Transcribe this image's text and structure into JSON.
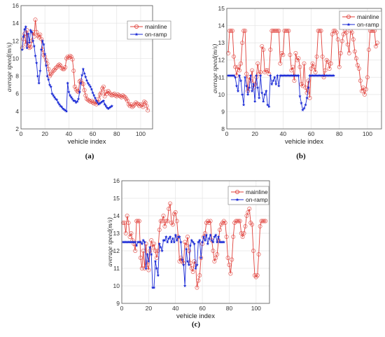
{
  "colors": {
    "mainline": "#e0403a",
    "onramp": "#1b2bd6",
    "mainline_fill": "#f6c0c0",
    "onramp_fill": "#c8ccf4"
  },
  "xlabel": "vehicle index",
  "ylabel": "average speed(m/s)",
  "legend": {
    "mainline": "mainline",
    "onramp": "on-ramp"
  },
  "chart_data": [
    {
      "type": "line",
      "caption": "(a)",
      "xlabel": "vehicle index",
      "ylabel": "average speed(m/s)",
      "xlim": [
        0,
        110
      ],
      "ylim": [
        2,
        16
      ],
      "xticks": [
        0,
        20,
        40,
        60,
        80,
        100
      ],
      "yticks": [
        2,
        4,
        6,
        8,
        10,
        12,
        14,
        16
      ],
      "grid": true,
      "legend_position": "top-right",
      "series": [
        {
          "name": "mainline",
          "marker": "circle",
          "values": [
            11.2,
            12.2,
            12.8,
            11.6,
            13.2,
            11.4,
            11.2,
            11.3,
            12.0,
            13.0,
            12.5,
            14.4,
            13.0,
            12.6,
            12.4,
            12.7,
            12.2,
            11.0,
            10.4,
            10.2,
            9.8,
            9.4,
            8.8,
            8.0,
            8.2,
            8.4,
            8.6,
            8.7,
            8.9,
            9.0,
            9.2,
            9.3,
            9.2,
            8.9,
            8.8,
            8.8,
            9.0,
            10.0,
            10.2,
            10.1,
            10.3,
            10.2,
            9.9,
            8.6,
            6.8,
            6.5,
            6.3,
            6.2,
            7.4,
            7.5,
            7.2,
            7.1,
            6.4,
            5.8,
            5.4,
            5.3,
            5.2,
            5.1,
            5.2,
            5.0,
            4.9,
            5.1,
            4.8,
            5.0,
            5.4,
            5.9,
            6.1,
            6.6,
            6.8,
            5.7,
            6.2,
            6.0,
            6.3,
            6.1,
            5.9,
            5.8,
            5.9,
            6.0,
            5.8,
            5.7,
            5.9,
            5.8,
            5.7,
            5.6,
            5.8,
            5.7,
            5.6,
            5.4,
            5.2,
            4.8,
            4.6,
            4.8,
            4.5,
            4.6,
            4.8,
            5.0,
            4.9,
            4.8,
            4.6,
            4.8,
            4.7,
            4.5,
            5.1,
            5.0,
            4.6,
            4.1
          ]
        },
        {
          "name": "on-ramp",
          "marker": "star",
          "values": [
            11.0,
            12.5,
            13.3,
            13.6,
            11.2,
            12.8,
            11.8,
            13.2,
            13.0,
            12.0,
            11.4,
            10.3,
            9.5,
            8.0,
            7.2,
            8.6,
            11.0,
            12.0,
            11.6,
            10.5,
            9.2,
            8.0,
            7.6,
            7.0,
            6.8,
            6.0,
            5.8,
            5.6,
            5.4,
            5.3,
            5.0,
            4.8,
            4.6,
            4.5,
            4.3,
            4.2,
            4.1,
            4.0,
            7.2,
            6.2,
            5.8,
            5.6,
            5.4,
            5.2,
            5.2,
            5.0,
            5.1,
            5.4,
            6.2,
            7.2,
            8.1,
            8.8,
            8.3,
            7.9,
            7.5,
            7.2,
            7.0,
            6.8,
            6.5,
            6.1,
            5.8,
            5.5,
            5.2,
            5.0,
            4.8,
            4.9,
            5.0,
            5.1,
            5.2,
            4.8,
            4.6,
            4.4,
            4.3,
            4.4,
            4.5,
            4.6
          ]
        }
      ]
    },
    {
      "type": "line",
      "caption": "(b)",
      "xlabel": "vehicle index",
      "ylabel": "average speed(m/s)",
      "xlim": [
        0,
        110
      ],
      "ylim": [
        8,
        15
      ],
      "xticks": [
        0,
        20,
        40,
        60,
        80,
        100
      ],
      "yticks": [
        8,
        9,
        10,
        11,
        12,
        13,
        14,
        15
      ],
      "grid": true,
      "legend_position": "top-right",
      "series": [
        {
          "name": "mainline",
          "marker": "circle",
          "values": [
            12.4,
            13.7,
            13.7,
            13.7,
            12.2,
            11.6,
            11.1,
            11.6,
            11.4,
            11.8,
            13.0,
            13.7,
            13.7,
            11.2,
            10.2,
            11.0,
            10.8,
            11.4,
            10.4,
            10.6,
            11.0,
            11.8,
            11.2,
            11.3,
            12.8,
            12.6,
            11.3,
            11.4,
            11.4,
            11.2,
            12.6,
            13.7,
            13.7,
            13.7,
            13.7,
            13.7,
            13.7,
            11.8,
            12.4,
            12.3,
            13.7,
            13.7,
            13.7,
            13.7,
            12.3,
            11.4,
            11.6,
            10.8,
            12.4,
            12.0,
            12.1,
            11.6,
            10.6,
            10.5,
            11.8,
            10.4,
            10.1,
            10.8,
            9.8,
            11.5,
            11.8,
            11.6,
            11.3,
            12.2,
            13.7,
            13.7,
            13.7,
            12.2,
            11.0,
            11.4,
            12.0,
            11.9,
            11.5,
            11.8,
            13.5,
            13.7,
            13.7,
            13.6,
            13.2,
            11.6,
            12.4,
            13.1,
            13.5,
            13.7,
            13.6,
            12.9,
            12.4,
            13.7,
            13.6,
            13.2,
            12.5,
            12.1,
            11.7,
            11.5,
            10.8,
            10.2,
            10.4,
            10.0,
            10.3,
            11.0,
            12.6,
            13.7,
            13.7,
            13.7,
            13.7,
            12.8,
            13.0
          ]
        },
        {
          "name": "on-ramp",
          "marker": "star",
          "values": [
            11.1,
            11.1,
            11.1,
            11.1,
            11.1,
            11.0,
            10.5,
            10.2,
            11.1,
            10.8,
            10.0,
            9.4,
            11.0,
            10.5,
            10.0,
            10.4,
            11.1,
            10.2,
            10.6,
            9.6,
            11.1,
            10.4,
            9.8,
            11.1,
            10.1,
            9.6,
            10.0,
            10.2,
            9.4,
            9.3,
            11.1,
            10.6,
            10.8,
            11.0,
            10.6,
            11.1,
            10.5,
            11.1,
            11.1,
            11.1,
            11.1,
            11.1,
            11.1,
            11.1,
            11.1,
            11.1,
            11.1,
            11.1,
            11.1,
            11.1,
            11.1,
            9.9,
            9.5,
            9.1,
            9.2,
            9.4,
            9.8,
            10.4,
            11.1,
            11.1,
            11.1,
            11.1,
            11.1,
            11.1,
            11.1,
            11.1,
            11.1,
            11.1,
            11.1,
            11.1,
            11.1,
            11.1,
            11.1,
            11.1,
            11.1,
            11.1
          ]
        }
      ]
    },
    {
      "type": "line",
      "caption": "(c)",
      "xlabel": "vehicle index",
      "ylabel": "average speed(m/s)",
      "xlim": [
        0,
        110
      ],
      "ylim": [
        9,
        16
      ],
      "xticks": [
        0,
        20,
        40,
        60,
        80,
        100
      ],
      "yticks": [
        9,
        10,
        11,
        12,
        13,
        14,
        15,
        16
      ],
      "grid": true,
      "legend_position": "top-right",
      "series": [
        {
          "name": "mainline",
          "marker": "circle",
          "values": [
            13.6,
            13.6,
            13.0,
            14.0,
            13.6,
            12.8,
            13.0,
            12.6,
            12.4,
            12.0,
            13.7,
            13.7,
            13.7,
            11.6,
            11.0,
            12.0,
            11.0,
            12.4,
            11.2,
            10.9,
            12.0,
            12.6,
            12.2,
            12.4,
            12.0,
            11.6,
            12.0,
            13.2,
            13.7,
            13.7,
            14.0,
            13.4,
            13.7,
            13.7,
            14.4,
            14.7,
            13.6,
            13.5,
            14.1,
            14.2,
            13.7,
            12.8,
            11.4,
            11.6,
            11.4,
            11.3,
            12.5,
            12.3,
            12.8,
            12.0,
            11.3,
            11.0,
            10.8,
            11.4,
            11.2,
            9.9,
            10.3,
            10.6,
            11.6,
            12.4,
            12.8,
            13.0,
            13.6,
            13.7,
            13.6,
            13.7,
            12.6,
            12.0,
            11.4,
            11.6,
            11.8,
            12.6,
            13.2,
            13.5,
            13.6,
            13.7,
            13.6,
            12.8,
            11.6,
            11.2,
            10.7,
            11.5,
            12.8,
            13.6,
            13.7,
            13.7,
            13.7,
            13.7,
            13.0,
            12.8,
            13.0,
            13.4,
            14.0,
            14.2,
            14.4,
            13.6,
            13.5,
            12.0,
            10.6,
            10.5,
            10.6,
            11.8,
            13.4,
            13.7,
            13.7,
            13.7,
            13.7
          ]
        },
        {
          "name": "on-ramp",
          "marker": "star",
          "values": [
            12.5,
            12.5,
            12.5,
            12.5,
            12.5,
            12.5,
            12.5,
            12.5,
            12.5,
            12.5,
            12.3,
            12.5,
            12.5,
            12.5,
            12.4,
            12.6,
            12.5,
            11.0,
            11.8,
            11.4,
            12.2,
            11.8,
            9.9,
            9.9,
            11.4,
            11.0,
            10.6,
            12.4,
            12.2,
            12.0,
            12.6,
            12.6,
            12.8,
            12.5,
            12.7,
            12.8,
            12.5,
            12.7,
            12.5,
            12.9,
            12.6,
            12.8,
            12.8,
            12.5,
            11.5,
            11.2,
            10.0,
            12.1,
            11.4,
            11.2,
            12.3,
            12.6,
            12.5,
            12.4,
            11.0,
            11.2,
            12.5,
            12.6,
            11.6,
            12.5,
            12.8,
            12.6,
            12.9,
            12.4,
            12.7,
            12.9,
            12.6,
            12.5,
            12.8,
            12.9,
            12.5,
            12.8,
            12.5,
            12.5,
            12.5,
            12.5
          ]
        }
      ]
    }
  ]
}
